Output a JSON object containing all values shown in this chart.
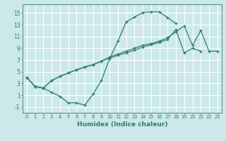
{
  "bg_color": "#cce8ea",
  "grid_color": "#ffffff",
  "line_color": "#2e7d70",
  "xlabel": "Humidex (Indice chaleur)",
  "xlim": [
    -0.5,
    23.5
  ],
  "ylim": [
    -2.0,
    16.5
  ],
  "xticks": [
    0,
    1,
    2,
    3,
    4,
    5,
    6,
    7,
    8,
    9,
    10,
    11,
    12,
    13,
    14,
    15,
    16,
    17,
    18,
    19,
    20,
    21,
    22,
    23
  ],
  "yticks": [
    -1,
    1,
    3,
    5,
    7,
    9,
    11,
    13,
    15
  ],
  "line1_x": [
    0,
    1,
    2,
    3,
    4,
    5,
    6,
    7,
    8,
    9,
    10,
    11,
    12,
    13,
    14,
    15,
    16,
    17,
    18
  ],
  "line1_y": [
    4.0,
    2.5,
    2.2,
    1.5,
    0.8,
    -0.3,
    -0.3,
    -0.7,
    1.2,
    3.5,
    7.2,
    10.2,
    13.5,
    14.3,
    15.1,
    15.2,
    15.2,
    14.2,
    13.2
  ],
  "line2_x": [
    0,
    1,
    2,
    3,
    4,
    5,
    6,
    7,
    8,
    9,
    10,
    11,
    12,
    13,
    14,
    15,
    16,
    17,
    18,
    19,
    20,
    21
  ],
  "line2_y": [
    4.0,
    2.5,
    2.2,
    3.5,
    4.2,
    4.8,
    5.3,
    5.8,
    6.2,
    6.8,
    7.3,
    7.8,
    8.2,
    8.7,
    9.2,
    9.6,
    10.0,
    10.5,
    12.2,
    8.2,
    9.0,
    8.5
  ],
  "line3_x": [
    0,
    1,
    2,
    3,
    4,
    5,
    6,
    7,
    8,
    9,
    10,
    11,
    12,
    13,
    14,
    15,
    16,
    17,
    18,
    19,
    20,
    21,
    22,
    23
  ],
  "line3_y": [
    4.0,
    2.5,
    2.2,
    3.5,
    4.2,
    4.8,
    5.3,
    5.8,
    6.2,
    6.8,
    7.5,
    8.0,
    8.5,
    9.0,
    9.5,
    9.8,
    10.2,
    10.8,
    11.8,
    12.8,
    9.5,
    12.0,
    8.5,
    8.5
  ]
}
